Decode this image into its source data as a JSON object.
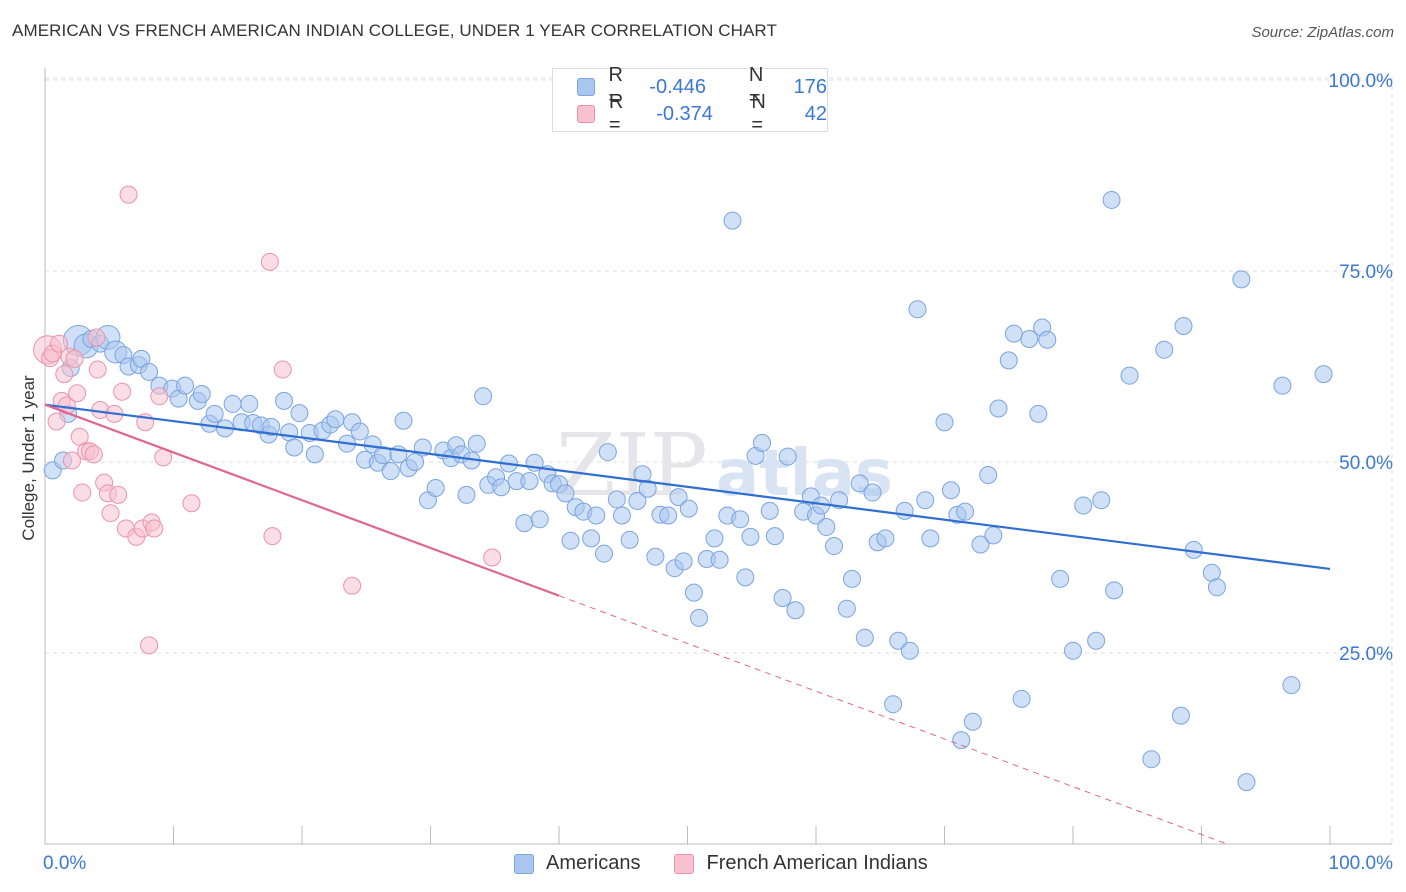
{
  "title": "AMERICAN VS FRENCH AMERICAN INDIAN COLLEGE, UNDER 1 YEAR CORRELATION CHART",
  "source": "Source: ZipAtlas.com",
  "watermark": {
    "zip": "ZIP",
    "atlas": "atlas"
  },
  "legend": {
    "rows": [
      {
        "r_label": "R =",
        "r_value": "-0.446",
        "n_label": "N =",
        "n_value": "176",
        "color": "#a9c6ee",
        "border": "#7aa5e0"
      },
      {
        "r_label": "R =",
        "r_value": "-0.374",
        "n_label": "N =",
        "n_value": "42",
        "color": "#f7c1cf",
        "border": "#ec93ab"
      }
    ]
  },
  "bottom_legend": {
    "americans": "Americans",
    "french": "French American Indians"
  },
  "chart_data": {
    "type": "scatter",
    "title": "AMERICAN VS FRENCH AMERICAN INDIAN COLLEGE, UNDER 1 YEAR CORRELATION CHART",
    "xlabel": "",
    "ylabel": "College, Under 1 year",
    "xlim": [
      0,
      100
    ],
    "ylim": [
      0,
      100
    ],
    "x_tick_labels": [
      "0.0%",
      "100.0%"
    ],
    "y_tick_labels": [
      "25.0%",
      "50.0%",
      "75.0%",
      "100.0%"
    ],
    "y_ticks": [
      25,
      50,
      75,
      100
    ],
    "grid": true,
    "legend_position": "top-center",
    "series": [
      {
        "name": "Americans",
        "color": "#7aa5e0",
        "fill": "#a9c6ee",
        "trend": {
          "x0": 0,
          "y0": 57.5,
          "x1": 100,
          "y1": 36.0,
          "color": "#2f6fd1"
        },
        "points": [
          [
            0.6,
            48.9
          ],
          [
            1.4,
            50.2
          ],
          [
            1.8,
            56.3
          ],
          [
            2.0,
            62.3
          ],
          [
            2.6,
            65.9
          ],
          [
            3.2,
            65.2
          ],
          [
            3.6,
            66.1
          ],
          [
            4.3,
            65.5
          ],
          [
            4.9,
            66.3
          ],
          [
            5.5,
            64.4
          ],
          [
            6.1,
            64.0
          ],
          [
            6.5,
            62.5
          ],
          [
            7.3,
            62.7
          ],
          [
            7.5,
            63.5
          ],
          [
            8.1,
            61.8
          ],
          [
            8.9,
            60.0
          ],
          [
            9.9,
            59.6
          ],
          [
            10.4,
            58.3
          ],
          [
            10.9,
            60.0
          ],
          [
            11.9,
            58.0
          ],
          [
            12.2,
            58.9
          ],
          [
            12.8,
            55.0
          ],
          [
            13.2,
            56.3
          ],
          [
            14.0,
            54.4
          ],
          [
            14.6,
            57.6
          ],
          [
            15.3,
            55.2
          ],
          [
            15.9,
            57.6
          ],
          [
            16.2,
            55.1
          ],
          [
            16.8,
            54.8
          ],
          [
            17.4,
            53.6
          ],
          [
            17.6,
            54.6
          ],
          [
            18.6,
            58.0
          ],
          [
            19.0,
            53.9
          ],
          [
            19.4,
            51.9
          ],
          [
            19.8,
            56.4
          ],
          [
            20.6,
            53.8
          ],
          [
            21.0,
            51.0
          ],
          [
            21.6,
            54.1
          ],
          [
            22.2,
            54.9
          ],
          [
            22.6,
            55.6
          ],
          [
            23.5,
            52.4
          ],
          [
            23.9,
            55.2
          ],
          [
            24.5,
            54.0
          ],
          [
            24.9,
            50.3
          ],
          [
            25.5,
            52.3
          ],
          [
            25.9,
            49.9
          ],
          [
            26.3,
            50.9
          ],
          [
            26.9,
            48.8
          ],
          [
            27.5,
            51.0
          ],
          [
            27.9,
            55.4
          ],
          [
            28.3,
            49.2
          ],
          [
            28.8,
            50.0
          ],
          [
            29.4,
            51.9
          ],
          [
            29.8,
            45.0
          ],
          [
            30.4,
            46.6
          ],
          [
            31.0,
            51.5
          ],
          [
            31.6,
            50.5
          ],
          [
            32.0,
            52.2
          ],
          [
            32.4,
            51.0
          ],
          [
            32.8,
            45.7
          ],
          [
            33.2,
            50.2
          ],
          [
            33.6,
            52.4
          ],
          [
            34.1,
            58.6
          ],
          [
            34.5,
            47.0
          ],
          [
            35.1,
            48.0
          ],
          [
            35.5,
            46.7
          ],
          [
            36.1,
            49.8
          ],
          [
            36.7,
            47.5
          ],
          [
            37.3,
            42.0
          ],
          [
            37.7,
            47.5
          ],
          [
            38.1,
            49.9
          ],
          [
            38.5,
            42.5
          ],
          [
            39.1,
            48.4
          ],
          [
            39.5,
            47.2
          ],
          [
            40.0,
            47.1
          ],
          [
            40.5,
            45.9
          ],
          [
            40.9,
            39.7
          ],
          [
            41.3,
            44.1
          ],
          [
            41.9,
            43.5
          ],
          [
            42.5,
            40.0
          ],
          [
            42.9,
            43.0
          ],
          [
            43.5,
            38.0
          ],
          [
            43.8,
            51.3
          ],
          [
            44.5,
            45.1
          ],
          [
            44.9,
            43.0
          ],
          [
            45.5,
            39.8
          ],
          [
            46.1,
            44.9
          ],
          [
            46.5,
            48.4
          ],
          [
            46.9,
            46.5
          ],
          [
            47.5,
            37.6
          ],
          [
            47.9,
            43.1
          ],
          [
            48.5,
            43.0
          ],
          [
            49.0,
            36.1
          ],
          [
            49.3,
            45.4
          ],
          [
            49.7,
            37.0
          ],
          [
            50.1,
            43.9
          ],
          [
            50.5,
            32.9
          ],
          [
            50.9,
            29.6
          ],
          [
            51.5,
            37.3
          ],
          [
            52.1,
            40.0
          ],
          [
            52.5,
            37.2
          ],
          [
            53.1,
            43.0
          ],
          [
            53.5,
            81.6
          ],
          [
            54.1,
            42.5
          ],
          [
            54.5,
            34.9
          ],
          [
            54.9,
            40.2
          ],
          [
            55.3,
            50.8
          ],
          [
            55.8,
            52.5
          ],
          [
            56.4,
            43.6
          ],
          [
            56.8,
            40.3
          ],
          [
            57.4,
            32.2
          ],
          [
            57.8,
            50.7
          ],
          [
            58.4,
            30.6
          ],
          [
            59.0,
            43.5
          ],
          [
            59.6,
            45.5
          ],
          [
            60.0,
            43.0
          ],
          [
            60.4,
            44.3
          ],
          [
            60.8,
            41.5
          ],
          [
            61.4,
            39.0
          ],
          [
            61.8,
            45.0
          ],
          [
            62.4,
            30.8
          ],
          [
            62.8,
            34.7
          ],
          [
            63.4,
            47.2
          ],
          [
            63.8,
            27.0
          ],
          [
            64.4,
            46.0
          ],
          [
            64.8,
            39.5
          ],
          [
            65.4,
            40.0
          ],
          [
            66.0,
            18.3
          ],
          [
            66.4,
            26.6
          ],
          [
            66.9,
            43.6
          ],
          [
            67.3,
            25.3
          ],
          [
            67.9,
            70.0
          ],
          [
            68.5,
            45.0
          ],
          [
            68.9,
            40.0
          ],
          [
            70.0,
            55.2
          ],
          [
            70.5,
            46.3
          ],
          [
            71.0,
            43.1
          ],
          [
            71.3,
            13.6
          ],
          [
            71.6,
            43.5
          ],
          [
            72.2,
            16.0
          ],
          [
            72.8,
            39.2
          ],
          [
            73.4,
            48.3
          ],
          [
            73.8,
            40.4
          ],
          [
            74.2,
            57.0
          ],
          [
            75.0,
            63.3
          ],
          [
            75.4,
            66.8
          ],
          [
            76.0,
            19.0
          ],
          [
            76.6,
            66.1
          ],
          [
            77.3,
            56.3
          ],
          [
            77.6,
            67.6
          ],
          [
            78.0,
            66.0
          ],
          [
            79.0,
            34.7
          ],
          [
            80.0,
            25.3
          ],
          [
            80.8,
            44.3
          ],
          [
            81.8,
            26.6
          ],
          [
            82.2,
            45.0
          ],
          [
            83.0,
            84.3
          ],
          [
            83.2,
            33.2
          ],
          [
            84.4,
            61.3
          ],
          [
            86.1,
            11.1
          ],
          [
            87.1,
            64.7
          ],
          [
            88.4,
            16.8
          ],
          [
            88.6,
            67.8
          ],
          [
            89.4,
            38.5
          ],
          [
            90.8,
            35.5
          ],
          [
            91.2,
            33.6
          ],
          [
            93.1,
            73.9
          ],
          [
            93.5,
            8.1
          ],
          [
            96.3,
            60.0
          ],
          [
            97.0,
            20.8
          ],
          [
            99.5,
            61.5
          ]
        ]
      },
      {
        "name": "French American Indians",
        "color": "#ec93ab",
        "fill": "#f7c1cf",
        "trend": {
          "x0": 0,
          "y0": 57.5,
          "x1": 40.0,
          "y1": 32.5,
          "dash_x1": 100,
          "dash_y1": -5.0,
          "color": "#e0668f"
        },
        "points": [
          [
            0.2,
            64.7
          ],
          [
            0.4,
            63.6
          ],
          [
            0.6,
            64.2
          ],
          [
            0.9,
            55.3
          ],
          [
            1.1,
            65.5
          ],
          [
            1.3,
            58.0
          ],
          [
            1.5,
            61.5
          ],
          [
            1.7,
            57.4
          ],
          [
            1.9,
            63.8
          ],
          [
            2.1,
            50.2
          ],
          [
            2.3,
            63.5
          ],
          [
            2.5,
            59.0
          ],
          [
            2.7,
            53.3
          ],
          [
            2.9,
            46.0
          ],
          [
            3.2,
            51.4
          ],
          [
            3.5,
            51.4
          ],
          [
            3.8,
            51.0
          ],
          [
            4.1,
            62.1
          ],
          [
            4.3,
            56.8
          ],
          [
            4.6,
            47.3
          ],
          [
            4.9,
            45.9
          ],
          [
            5.1,
            43.3
          ],
          [
            5.4,
            56.3
          ],
          [
            5.7,
            45.7
          ],
          [
            6.0,
            59.2
          ],
          [
            6.3,
            41.3
          ],
          [
            6.5,
            85.0
          ],
          [
            7.1,
            40.2
          ],
          [
            7.6,
            41.3
          ],
          [
            7.8,
            55.2
          ],
          [
            8.1,
            26.0
          ],
          [
            8.3,
            42.1
          ],
          [
            8.5,
            41.3
          ],
          [
            8.9,
            58.6
          ],
          [
            9.2,
            50.6
          ],
          [
            11.4,
            44.6
          ],
          [
            17.5,
            76.2
          ],
          [
            17.7,
            40.3
          ],
          [
            18.5,
            62.1
          ],
          [
            23.9,
            33.8
          ],
          [
            34.8,
            37.5
          ],
          [
            4.0,
            66.3
          ]
        ]
      }
    ]
  }
}
